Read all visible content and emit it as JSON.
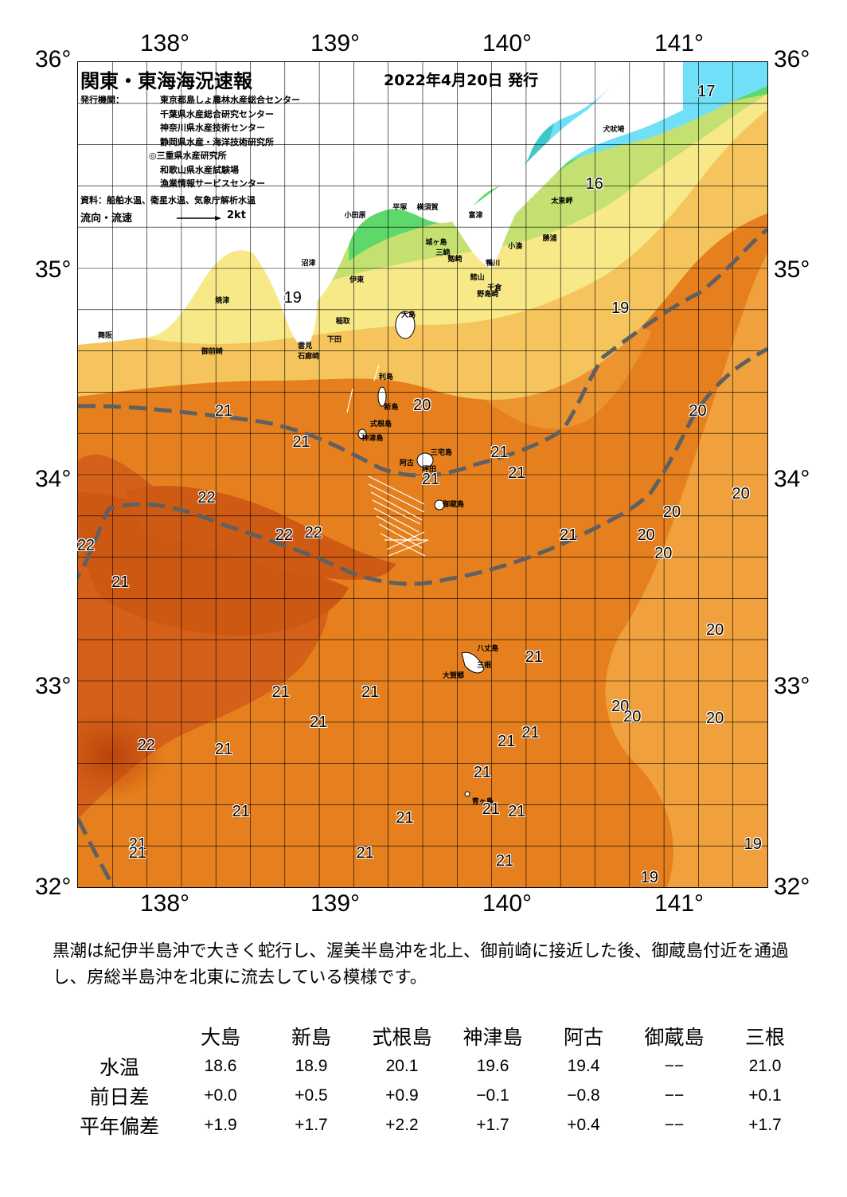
{
  "map": {
    "title": "関東・東海海況速報",
    "date": "2022年4月20日 発行",
    "issuer_label": "発行機関：",
    "issuers": [
      "東京都島しょ農林水産総合センター",
      "千葉県水産総合研究センター",
      "神奈川県水産技術センター",
      "静岡県水産・海洋技術研究所",
      "◎三重県水産研究所",
      "和歌山県水産試験場",
      "漁業情報サービスセンター"
    ],
    "source": "資料：船舶水温、衛星水温、気象庁解析水温",
    "flow_label": "流向・流速",
    "flow_scale": "2kt",
    "lon_labels": [
      "138°",
      "139°",
      "140°",
      "141°"
    ],
    "lat_labels": [
      "36°",
      "35°",
      "34°",
      "33°",
      "32°"
    ],
    "lon_range": [
      137.5,
      141.5
    ],
    "lat_range": [
      32,
      36
    ],
    "places": [
      {
        "name": "犬吠埼",
        "lon": 140.55,
        "lat": 35.7
      },
      {
        "name": "太東岬",
        "lon": 140.25,
        "lat": 35.35
      },
      {
        "name": "勝浦",
        "lon": 140.2,
        "lat": 35.17
      },
      {
        "name": "小湊",
        "lon": 140.0,
        "lat": 35.13
      },
      {
        "name": "鴨川",
        "lon": 139.87,
        "lat": 35.05
      },
      {
        "name": "館山",
        "lon": 139.78,
        "lat": 34.98
      },
      {
        "name": "千倉",
        "lon": 139.88,
        "lat": 34.93
      },
      {
        "name": "野島崎",
        "lon": 139.82,
        "lat": 34.9
      },
      {
        "name": "小田原",
        "lon": 139.05,
        "lat": 35.28
      },
      {
        "name": "平塚",
        "lon": 139.33,
        "lat": 35.32
      },
      {
        "name": "横須賀",
        "lon": 139.47,
        "lat": 35.32
      },
      {
        "name": "富津",
        "lon": 139.77,
        "lat": 35.28
      },
      {
        "name": "城ヶ島",
        "lon": 139.52,
        "lat": 35.15
      },
      {
        "name": "三崎",
        "lon": 139.58,
        "lat": 35.1
      },
      {
        "name": "剱崎",
        "lon": 139.65,
        "lat": 35.07
      },
      {
        "name": "沼津",
        "lon": 138.8,
        "lat": 35.05
      },
      {
        "name": "伊東",
        "lon": 139.08,
        "lat": 34.97
      },
      {
        "name": "焼津",
        "lon": 138.3,
        "lat": 34.87
      },
      {
        "name": "大島",
        "lon": 139.38,
        "lat": 34.8
      },
      {
        "name": "稲取",
        "lon": 139.0,
        "lat": 34.77
      },
      {
        "name": "下田",
        "lon": 138.95,
        "lat": 34.68
      },
      {
        "name": "雲見",
        "lon": 138.78,
        "lat": 34.65
      },
      {
        "name": "御前崎",
        "lon": 138.22,
        "lat": 34.62
      },
      {
        "name": "石廊崎",
        "lon": 138.78,
        "lat": 34.6
      },
      {
        "name": "舞阪",
        "lon": 137.62,
        "lat": 34.7
      },
      {
        "name": "利島",
        "lon": 139.25,
        "lat": 34.5
      },
      {
        "name": "新島",
        "lon": 139.28,
        "lat": 34.35
      },
      {
        "name": "式根島",
        "lon": 139.2,
        "lat": 34.27
      },
      {
        "name": "神津島",
        "lon": 139.15,
        "lat": 34.2
      },
      {
        "name": "三宅島",
        "lon": 139.55,
        "lat": 34.13
      },
      {
        "name": "阿古",
        "lon": 139.37,
        "lat": 34.08
      },
      {
        "name": "坪田",
        "lon": 139.5,
        "lat": 34.05
      },
      {
        "name": "御蔵島",
        "lon": 139.62,
        "lat": 33.88
      },
      {
        "name": "八丈島",
        "lon": 139.82,
        "lat": 33.18
      },
      {
        "name": "三根",
        "lon": 139.82,
        "lat": 33.1
      },
      {
        "name": "大賀郷",
        "lon": 139.62,
        "lat": 33.05
      },
      {
        "name": "青ヶ島",
        "lon": 139.79,
        "lat": 32.44
      }
    ],
    "temps": [
      {
        "v": "17",
        "lon": 141.15,
        "lat": 35.85
      },
      {
        "v": "16",
        "lon": 140.5,
        "lat": 35.4
      },
      {
        "v": "19",
        "lon": 138.75,
        "lat": 34.85
      },
      {
        "v": "19",
        "lon": 140.65,
        "lat": 34.8
      },
      {
        "v": "21",
        "lon": 138.35,
        "lat": 34.3
      },
      {
        "v": "21",
        "lon": 138.8,
        "lat": 34.15
      },
      {
        "v": "20",
        "lon": 139.5,
        "lat": 34.33
      },
      {
        "v": "21",
        "lon": 139.95,
        "lat": 34.1
      },
      {
        "v": "21",
        "lon": 140.05,
        "lat": 34.0
      },
      {
        "v": "21",
        "lon": 139.55,
        "lat": 33.97
      },
      {
        "v": "20",
        "lon": 141.1,
        "lat": 34.3
      },
      {
        "v": "20",
        "lon": 141.35,
        "lat": 33.9
      },
      {
        "v": "20",
        "lon": 140.95,
        "lat": 33.81
      },
      {
        "v": "20",
        "lon": 140.8,
        "lat": 33.7
      },
      {
        "v": "20",
        "lon": 140.9,
        "lat": 33.61
      },
      {
        "v": "21",
        "lon": 140.35,
        "lat": 33.7
      },
      {
        "v": "22",
        "lon": 138.25,
        "lat": 33.88
      },
      {
        "v": "22",
        "lon": 138.7,
        "lat": 33.7
      },
      {
        "v": "22",
        "lon": 138.87,
        "lat": 33.71
      },
      {
        "v": "22",
        "lon": 137.55,
        "lat": 33.65
      },
      {
        "v": "21",
        "lon": 137.75,
        "lat": 33.47
      },
      {
        "v": "20",
        "lon": 141.2,
        "lat": 33.24
      },
      {
        "v": "21",
        "lon": 140.15,
        "lat": 33.11
      },
      {
        "v": "21",
        "lon": 138.68,
        "lat": 32.94
      },
      {
        "v": "21",
        "lon": 139.2,
        "lat": 32.94
      },
      {
        "v": "20",
        "lon": 140.65,
        "lat": 32.87
      },
      {
        "v": "20",
        "lon": 140.72,
        "lat": 32.82
      },
      {
        "v": "20",
        "lon": 141.2,
        "lat": 32.81
      },
      {
        "v": "21",
        "lon": 138.9,
        "lat": 32.79
      },
      {
        "v": "21",
        "lon": 140.13,
        "lat": 32.74
      },
      {
        "v": "21",
        "lon": 139.99,
        "lat": 32.7
      },
      {
        "v": "22",
        "lon": 137.9,
        "lat": 32.68
      },
      {
        "v": "21",
        "lon": 138.35,
        "lat": 32.66
      },
      {
        "v": "21",
        "lon": 139.85,
        "lat": 32.55
      },
      {
        "v": "21",
        "lon": 138.45,
        "lat": 32.36
      },
      {
        "v": "21",
        "lon": 139.4,
        "lat": 32.33
      },
      {
        "v": "21",
        "lon": 139.9,
        "lat": 32.37
      },
      {
        "v": "21",
        "lon": 140.05,
        "lat": 32.36
      },
      {
        "v": "21",
        "lon": 137.85,
        "lat": 32.2
      },
      {
        "v": "21",
        "lon": 137.85,
        "lat": 32.16
      },
      {
        "v": "21",
        "lon": 139.17,
        "lat": 32.16
      },
      {
        "v": "21",
        "lon": 139.98,
        "lat": 32.12
      },
      {
        "v": "19",
        "lon": 141.42,
        "lat": 32.2
      },
      {
        "v": "19",
        "lon": 140.82,
        "lat": 32.04
      }
    ]
  },
  "colors": {
    "t22": "#c9500e",
    "t21": "#e6801e",
    "t20": "#f0a03c",
    "t19": "#f5c45c",
    "t18": "#f7e888",
    "t17": "#c4e070",
    "t16": "#5ed86a",
    "t15": "#3ec8c8",
    "t14": "#70e0f8",
    "land": "#ffffff",
    "kuroshio": "#606060"
  },
  "comment": "黒潮は紀伊半島沖で大きく蛇行し、渥美半島沖を北上、御前崎に接近した後、御蔵島付近を通過し、房総半島沖を北東に流去している模様です。",
  "table": {
    "stations": [
      "大島",
      "新島",
      "式根島",
      "神津島",
      "阿古",
      "御蔵島",
      "三根"
    ],
    "rows": [
      {
        "label": "水温",
        "values": [
          "18.6",
          "18.9",
          "20.1",
          "19.6",
          "19.4",
          "−−",
          "21.0"
        ]
      },
      {
        "label": "前日差",
        "values": [
          "+0.0",
          "+0.5",
          "+0.9",
          "−0.1",
          "−0.8",
          "−−",
          "+0.1"
        ]
      },
      {
        "label": "平年偏差",
        "values": [
          "+1.9",
          "+1.7",
          "+2.2",
          "+1.7",
          "+0.4",
          "−−",
          "+1.7"
        ]
      }
    ]
  }
}
